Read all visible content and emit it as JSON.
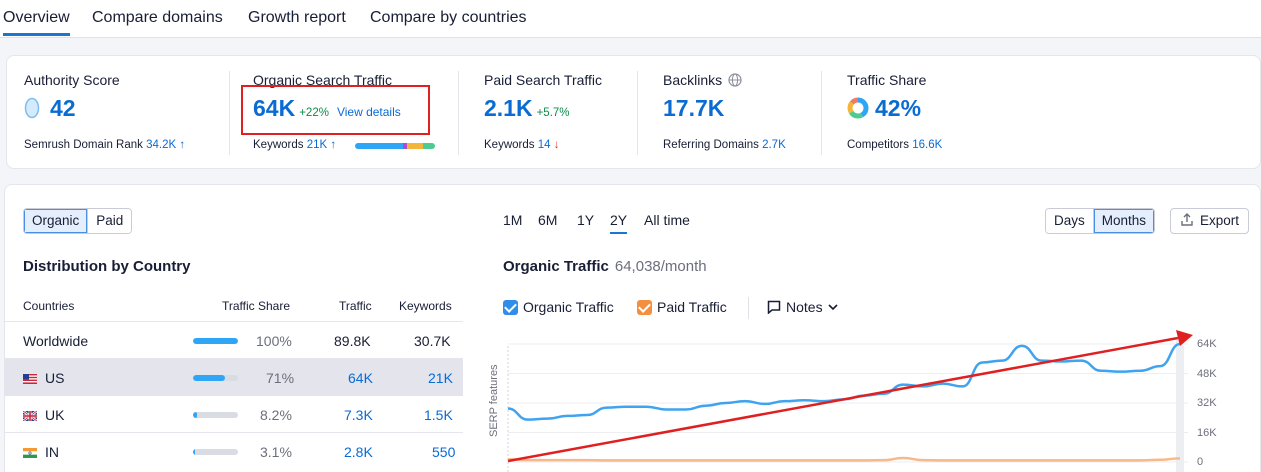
{
  "tabs": [
    {
      "label": "Overview",
      "active": true
    },
    {
      "label": "Compare domains",
      "active": false
    },
    {
      "label": "Growth report",
      "active": false
    },
    {
      "label": "Compare by countries",
      "active": false
    }
  ],
  "summary": {
    "authority": {
      "label": "Authority Score",
      "value": "42",
      "sub_label": "Semrush Domain Rank",
      "sub_value": "34.2K",
      "sub_arrow": "↑"
    },
    "organic": {
      "label": "Organic Search Traffic",
      "value": "64K",
      "change": "+22%",
      "link": "View details",
      "sub_label": "Keywords",
      "sub_value": "21K",
      "sub_arrow": "↑"
    },
    "paid": {
      "label": "Paid Search Traffic",
      "value": "2.1K",
      "change": "+5.7%",
      "sub_label": "Keywords",
      "sub_value": "14",
      "sub_arrow": "↓"
    },
    "backlinks": {
      "label": "Backlinks",
      "value": "17.7K",
      "sub_label": "Referring Domains",
      "sub_value": "2.7K"
    },
    "share": {
      "label": "Traffic Share",
      "value": "42%",
      "sub_label": "Competitors",
      "sub_value": "16.6K"
    }
  },
  "keyword_distribution_colors": [
    "#2fa6f5",
    "#2fa6f5",
    "#b04bd7",
    "#f3b63b",
    "#4ccc92"
  ],
  "toggle": {
    "organic": "Organic",
    "paid": "Paid"
  },
  "distribution": {
    "title": "Distribution by Country",
    "headers": {
      "country": "Countries",
      "share": "Traffic Share",
      "traffic": "Traffic",
      "keywords": "Keywords"
    },
    "rows": [
      {
        "country": "Worldwide",
        "share": "100%",
        "share_fraction": 1.0,
        "traffic": "89.8K",
        "keywords": "30.7K",
        "selected": false,
        "flag": ""
      },
      {
        "country": "US",
        "share": "71%",
        "share_fraction": 0.71,
        "traffic": "64K",
        "keywords": "21K",
        "selected": true,
        "flag": "us"
      },
      {
        "country": "UK",
        "share": "8.2%",
        "share_fraction": 0.082,
        "traffic": "7.3K",
        "keywords": "1.5K",
        "selected": false,
        "flag": "uk"
      },
      {
        "country": "IN",
        "share": "3.1%",
        "share_fraction": 0.031,
        "traffic": "2.8K",
        "keywords": "550",
        "selected": false,
        "flag": "in"
      }
    ]
  },
  "periods": [
    {
      "label": "1M",
      "active": false
    },
    {
      "label": "6M",
      "active": false
    },
    {
      "label": "1Y",
      "active": false
    },
    {
      "label": "2Y",
      "active": true
    },
    {
      "label": "All time",
      "active": false
    }
  ],
  "granularity": {
    "days": "Days",
    "months": "Months"
  },
  "export_label": "Export",
  "chart_title": "Organic Traffic",
  "chart_subtitle": "64,038/month",
  "legend": {
    "organic": "Organic Traffic",
    "paid": "Paid Traffic",
    "notes": "Notes"
  },
  "serp_label": "SERP features",
  "chart_data": {
    "type": "line",
    "title": "Organic Traffic",
    "ylim": [
      0,
      64000
    ],
    "yticks": [
      "64K",
      "48K",
      "32K",
      "16K",
      "0"
    ],
    "ytick_values": [
      64000,
      48000,
      32000,
      16000,
      0
    ],
    "series": [
      {
        "name": "Organic Traffic",
        "color": "#3fa3ef",
        "values": [
          29000,
          23000,
          23500,
          25000,
          25500,
          29500,
          30000,
          30000,
          28500,
          28500,
          30500,
          32000,
          33000,
          31500,
          33000,
          33500,
          33000,
          34000,
          36000,
          37000,
          42000,
          41000,
          42500,
          41000,
          54000,
          55000,
          63000,
          55000,
          54500,
          55000,
          49500,
          49000,
          49500,
          52000,
          64000
        ]
      },
      {
        "name": "Paid Traffic",
        "color": "#f6b98a",
        "values": [
          1500,
          1000,
          1000,
          1000,
          1000,
          900,
          900,
          900,
          900,
          900,
          900,
          900,
          900,
          900,
          900,
          900,
          900,
          900,
          900,
          1000,
          2200,
          1000,
          900,
          900,
          900,
          900,
          900,
          900,
          900,
          900,
          900,
          900,
          900,
          1200,
          2000
        ]
      }
    ],
    "grid": true
  },
  "colors": {
    "accent": "#0a6bd3",
    "annotation": "#e02020"
  }
}
